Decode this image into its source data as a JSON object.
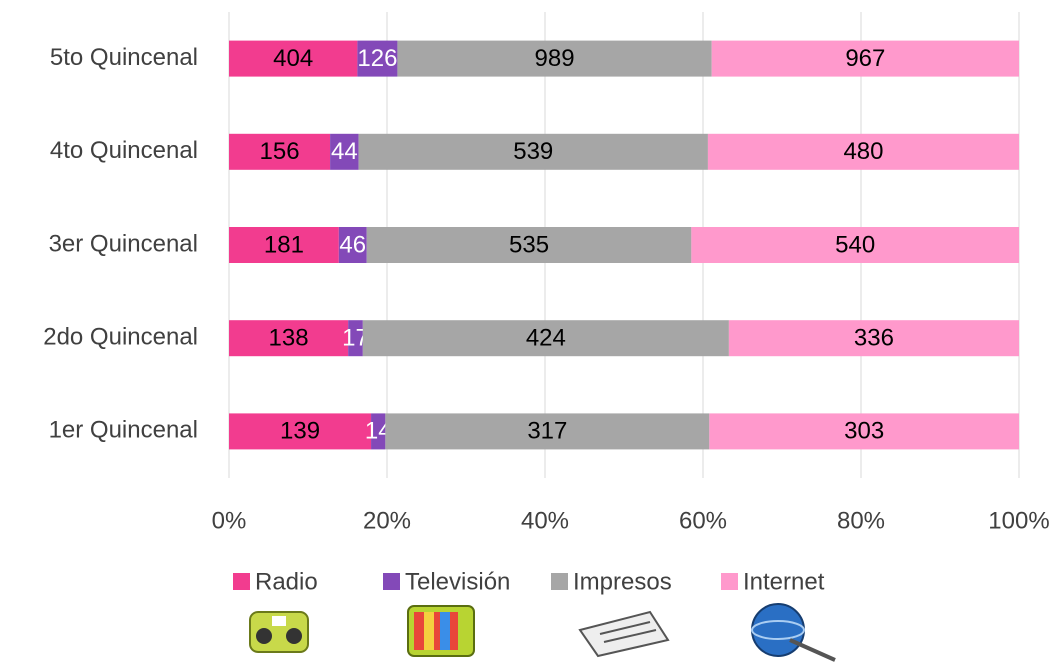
{
  "chart_data": {
    "type": "bar",
    "orientation": "horizontal",
    "stack": "percent",
    "categories": [
      "1er Quincenal",
      "2do Quincenal",
      "3er Quincenal",
      "4to Quincenal",
      "5to Quincenal"
    ],
    "series": [
      {
        "name": "Radio",
        "color": "#f23c8f",
        "label_color": "#000000",
        "values": [
          139,
          138,
          181,
          156,
          404
        ]
      },
      {
        "name": "Televisión",
        "color": "#8349b8",
        "label_color": "#ffffff",
        "values": [
          14,
          17,
          46,
          44,
          126
        ]
      },
      {
        "name": "Impresos",
        "color": "#a6a6a6",
        "label_color": "#000000",
        "values": [
          317,
          424,
          535,
          539,
          989
        ]
      },
      {
        "name": "Internet",
        "color": "#ff99cc",
        "label_color": "#000000",
        "values": [
          303,
          336,
          540,
          480,
          967
        ]
      }
    ],
    "xlim": [
      0,
      100
    ],
    "xticks": [
      {
        "value": 0,
        "label": "0%"
      },
      {
        "value": 20,
        "label": "20%"
      },
      {
        "value": 40,
        "label": "40%"
      },
      {
        "value": 60,
        "label": "60%"
      },
      {
        "value": 80,
        "label": "80%"
      },
      {
        "value": 100,
        "label": "100%"
      }
    ],
    "grid": true,
    "legend": "bottom"
  }
}
